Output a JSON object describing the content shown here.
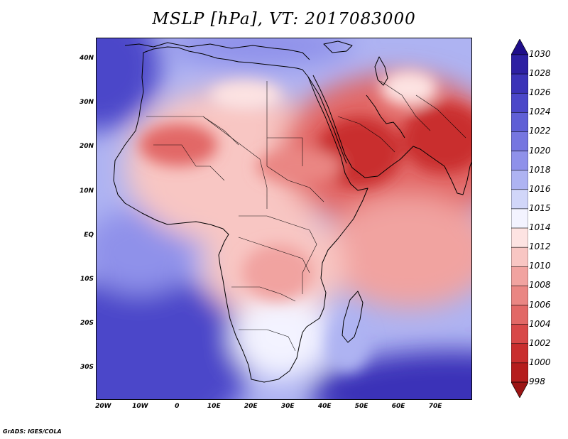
{
  "title": "MSLP [hPa], VT: 2017083000",
  "credit": "GrADS: IGES/COLA",
  "lat_labels": [
    "40N",
    "30N",
    "20N",
    "10N",
    "EQ",
    "10S",
    "20S",
    "30S"
  ],
  "lat_values": [
    40,
    30,
    20,
    10,
    0,
    -10,
    -20,
    -30
  ],
  "lon_labels": [
    "20W",
    "10W",
    "0",
    "10E",
    "20E",
    "30E",
    "40E",
    "50E",
    "60E",
    "70E"
  ],
  "lon_values": [
    -20,
    -10,
    0,
    10,
    20,
    30,
    40,
    50,
    60,
    70
  ],
  "map_extent": {
    "lon": [
      -22,
      80
    ],
    "lat": [
      -37,
      45
    ]
  },
  "colorbar": {
    "levels": [
      "1030",
      "1028",
      "1026",
      "1024",
      "1022",
      "1020",
      "1018",
      "1016",
      "1015",
      "1014",
      "1012",
      "1010",
      "1008",
      "1006",
      "1004",
      "1002",
      "1000",
      "998"
    ],
    "colors": [
      "#1f0e8a",
      "#2d20a3",
      "#3b33b8",
      "#4b47c9",
      "#5f5fd6",
      "#7676e0",
      "#8f91ea",
      "#aeb3f2",
      "#d1d6f9",
      "#f3f3ff",
      "#fde3e2",
      "#f8c6c3",
      "#f1a3a0",
      "#ea8683",
      "#e26866",
      "#d84848",
      "#c92e2e",
      "#b51d1d",
      "#9b1414"
    ],
    "end_colors": {
      "top": "#1f0e8a",
      "bottom": "#9b1414"
    }
  },
  "colors": {
    "ocean_high": "#4b47c9",
    "ocean_mid": "#8f91ea",
    "ocean_low": "#d1d6f9",
    "neutral": "#fde3e2",
    "land_low": "#f1a3a0",
    "land_lower": "#e26866",
    "heat_low": "#c92e2e"
  }
}
